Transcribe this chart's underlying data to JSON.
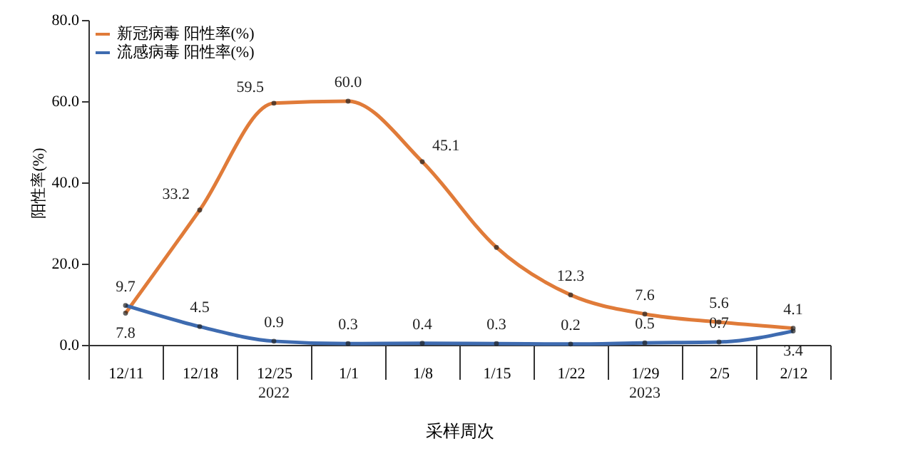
{
  "chart_data": {
    "type": "line",
    "categories": [
      "12/11",
      "12/18",
      "12/25",
      "1/1",
      "1/8",
      "1/15",
      "1/22",
      "1/29",
      "2/5",
      "2/12"
    ],
    "series": [
      {
        "name": "新冠病毒 阳性率(%)",
        "color": "#e07b39",
        "values": [
          7.8,
          33.2,
          59.5,
          60.0,
          45.1,
          24,
          12.3,
          7.6,
          5.6,
          4.1
        ],
        "value_labels": [
          "7.8",
          "33.2",
          "59.5",
          "60.0",
          "45.1",
          null,
          "12.3",
          "7.6",
          "5.6",
          "4.1"
        ]
      },
      {
        "name": "流感病毒 阳性率(%)",
        "color": "#3e6bb0",
        "values": [
          9.7,
          4.5,
          0.9,
          0.3,
          0.4,
          0.3,
          0.2,
          0.5,
          0.7,
          3.4
        ],
        "value_labels": [
          "9.7",
          "4.5",
          "0.9",
          "0.3",
          "0.4",
          "0.3",
          "0.2",
          "0.5",
          "0.7",
          "3.4"
        ]
      }
    ],
    "ylabel": "阳性率(%)",
    "xlabel": "采样周次",
    "ylim": [
      0,
      80
    ],
    "yticks": [
      {
        "value": 0,
        "label": "0.0"
      },
      {
        "value": 20,
        "label": "20.0"
      },
      {
        "value": 40,
        "label": "40.0"
      },
      {
        "value": 60,
        "label": "60.0"
      },
      {
        "value": 80,
        "label": "80.0"
      }
    ],
    "annotations": [
      "2022",
      "2023"
    ],
    "legend": "top left",
    "marker": "circle",
    "line_style": "solid",
    "grid": false
  }
}
